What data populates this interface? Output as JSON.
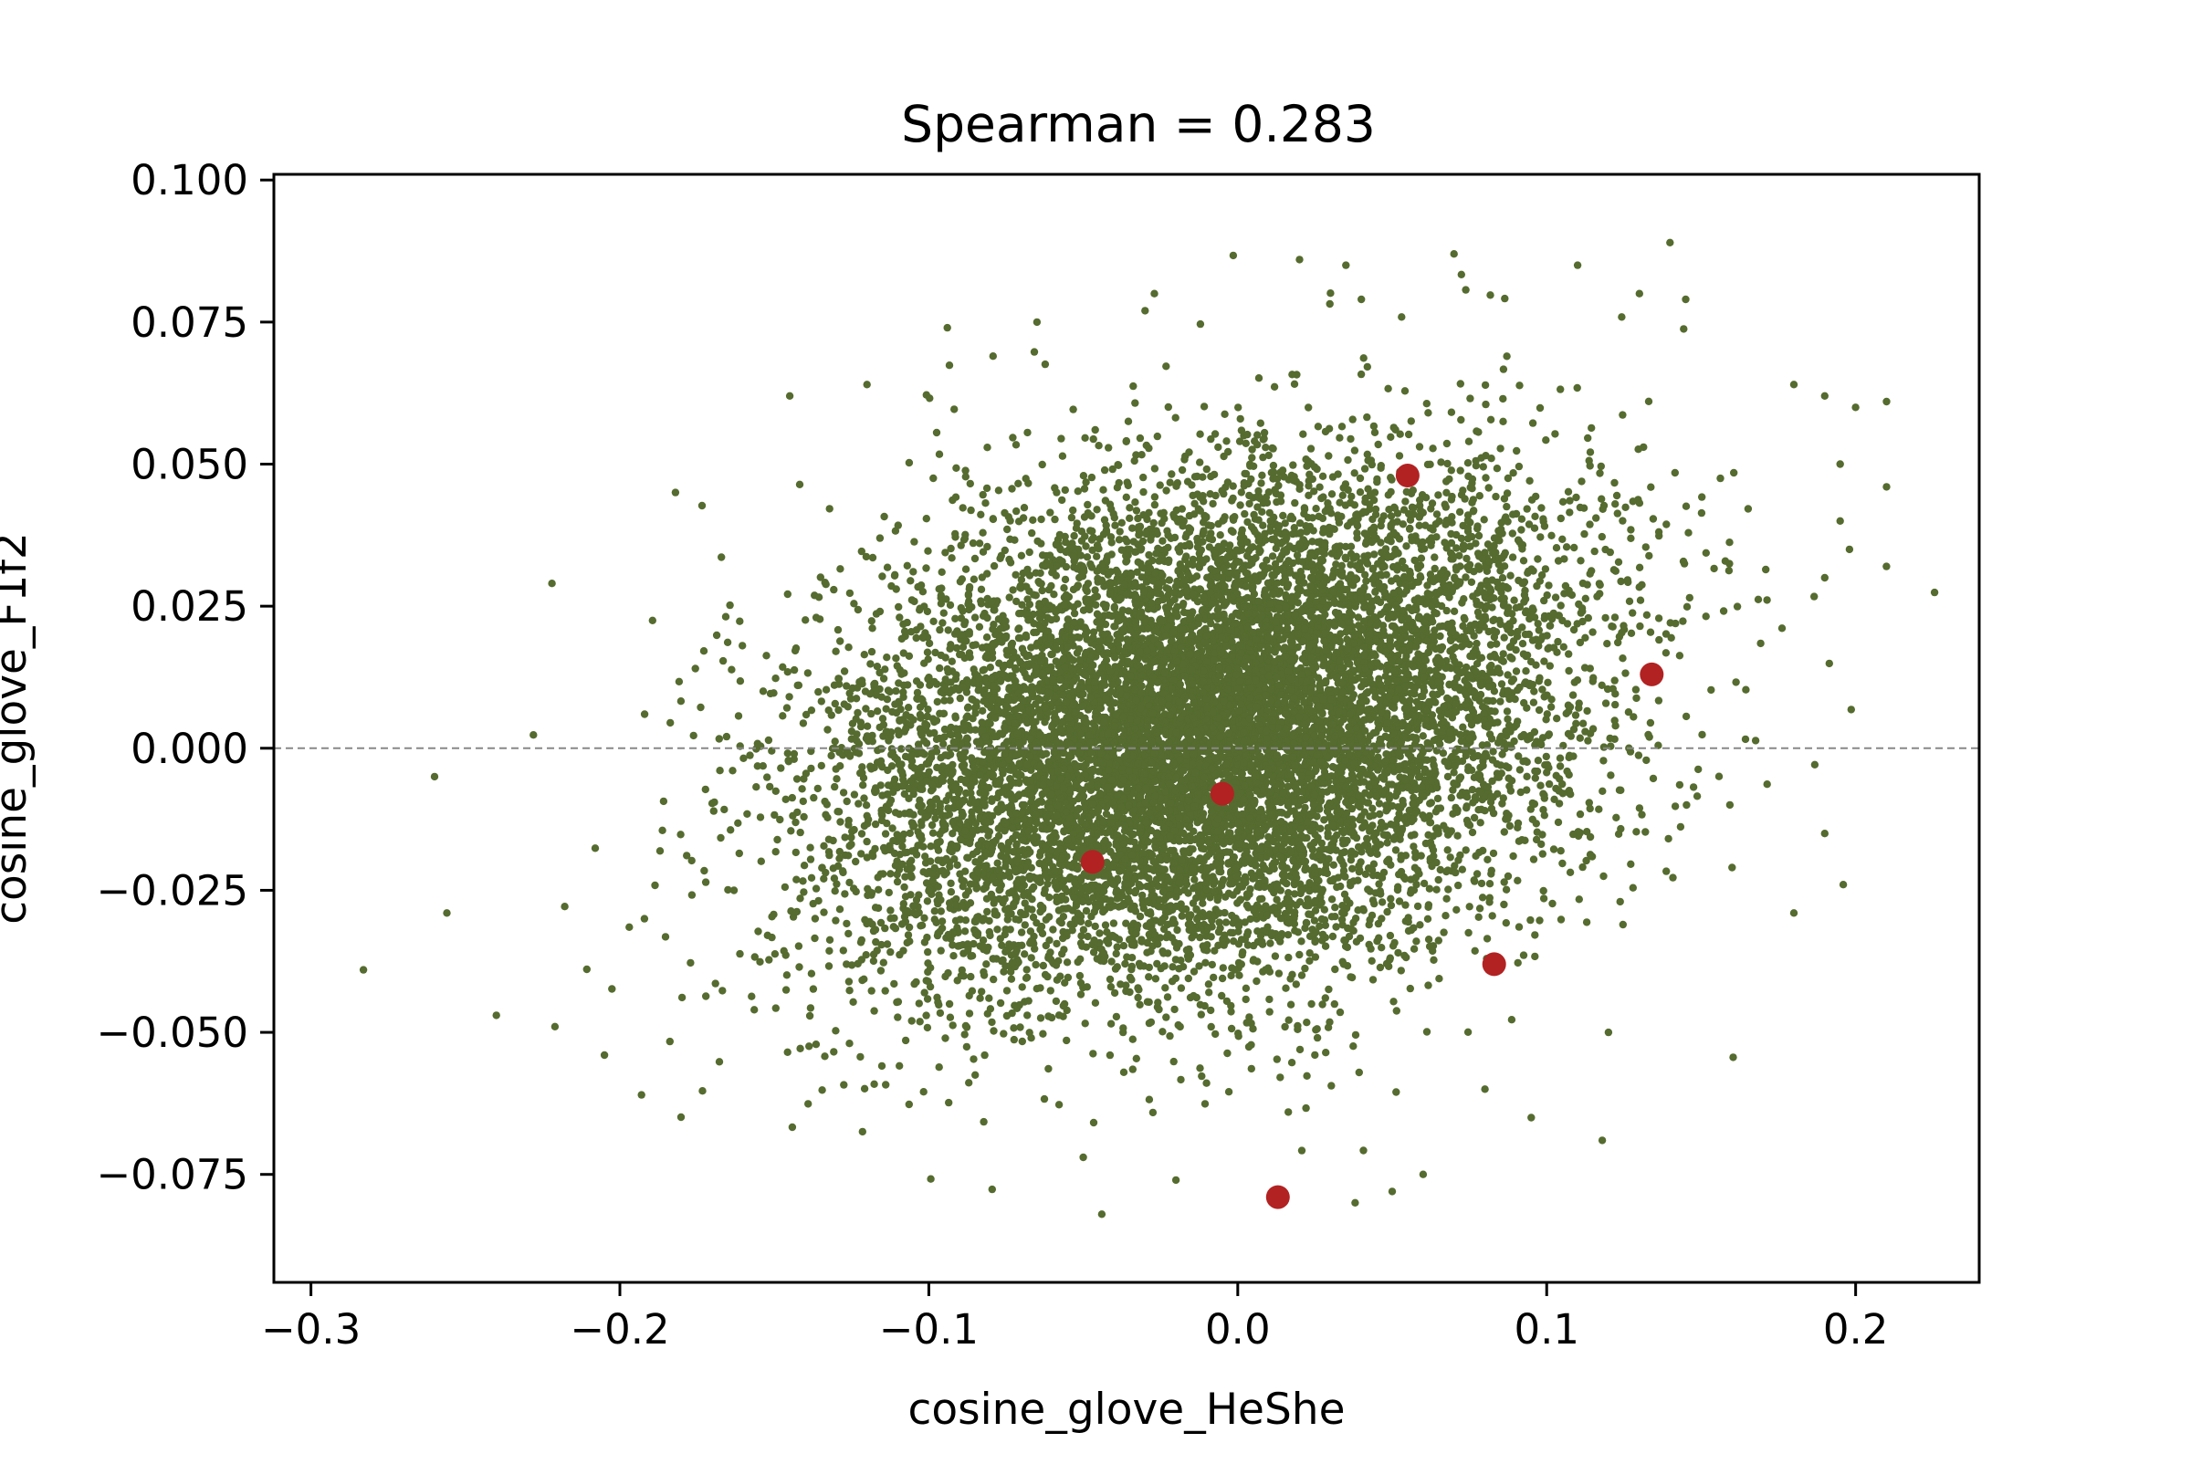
{
  "chart_data": {
    "type": "scatter",
    "title": "Spearman = 0.283",
    "xlabel": "cosine_glove_HeShe",
    "ylabel": "cosine_glove_F1f2",
    "xlim": [
      -0.312,
      0.24
    ],
    "ylim": [
      -0.094,
      0.101
    ],
    "x_ticks": [
      -0.3,
      -0.2,
      -0.1,
      0.0,
      0.1,
      0.2
    ],
    "x_tick_labels": [
      "−0.3",
      "−0.2",
      "−0.1",
      "0.0",
      "0.1",
      "0.2"
    ],
    "y_ticks": [
      0.1,
      0.075,
      0.05,
      0.025,
      0.0,
      -0.025,
      -0.05,
      -0.075
    ],
    "y_tick_labels": [
      "0.100",
      "0.075",
      "0.050",
      "0.025",
      "0.000",
      "−0.025",
      "−0.050",
      "−0.075"
    ],
    "reference_line": {
      "y": 0.0,
      "style": "dashed",
      "color": "#888888"
    },
    "grid": false,
    "series": [
      {
        "marker": "small-dot",
        "color": "#556b2f",
        "distribution": {
          "center": [
            -0.01,
            0.003
          ],
          "std": [
            0.058,
            0.022
          ],
          "spearman": 0.283,
          "count": 12000
        },
        "outliers": [
          [
            -0.283,
            -0.039
          ],
          [
            -0.26,
            -0.005
          ],
          [
            -0.256,
            -0.029
          ],
          [
            -0.24,
            -0.047
          ],
          [
            -0.222,
            0.029
          ],
          [
            -0.221,
            -0.049
          ],
          [
            -0.205,
            -0.054
          ],
          [
            -0.193,
            -0.061
          ],
          [
            -0.182,
            0.045
          ],
          [
            -0.145,
            0.062
          ],
          [
            -0.12,
            0.064
          ],
          [
            -0.094,
            0.074
          ],
          [
            -0.065,
            0.075
          ],
          [
            -0.03,
            0.077
          ],
          [
            -0.027,
            0.08
          ],
          [
            0.02,
            0.086
          ],
          [
            0.035,
            0.085
          ],
          [
            0.07,
            0.087
          ],
          [
            0.04,
            0.079
          ],
          [
            0.11,
            0.085
          ],
          [
            0.13,
            0.08
          ],
          [
            0.145,
            0.079
          ],
          [
            0.18,
            0.064
          ],
          [
            0.19,
            0.062
          ],
          [
            0.2,
            0.06
          ],
          [
            0.21,
            0.061
          ],
          [
            0.21,
            0.046
          ],
          [
            0.195,
            0.05
          ],
          [
            0.195,
            0.04
          ],
          [
            0.19,
            0.03
          ],
          [
            0.198,
            0.035
          ],
          [
            0.19,
            -0.015
          ],
          [
            0.196,
            -0.024
          ],
          [
            0.18,
            -0.029
          ],
          [
            0.16,
            -0.021
          ],
          [
            0.12,
            -0.05
          ],
          [
            0.118,
            -0.069
          ],
          [
            0.095,
            -0.065
          ],
          [
            0.08,
            -0.06
          ],
          [
            0.05,
            -0.078
          ],
          [
            0.038,
            -0.08
          ],
          [
            -0.02,
            -0.076
          ],
          [
            -0.044,
            -0.082
          ],
          [
            -0.05,
            -0.072
          ],
          [
            0.015,
            -0.079
          ],
          [
            0.06,
            -0.075
          ]
        ]
      },
      {
        "marker": "large-dot",
        "color": "#b22222",
        "points": [
          [
            0.055,
            0.048
          ],
          [
            0.134,
            0.013
          ],
          [
            -0.005,
            -0.008
          ],
          [
            -0.047,
            -0.02
          ],
          [
            0.083,
            -0.038
          ],
          [
            0.013,
            -0.079
          ]
        ]
      }
    ]
  }
}
